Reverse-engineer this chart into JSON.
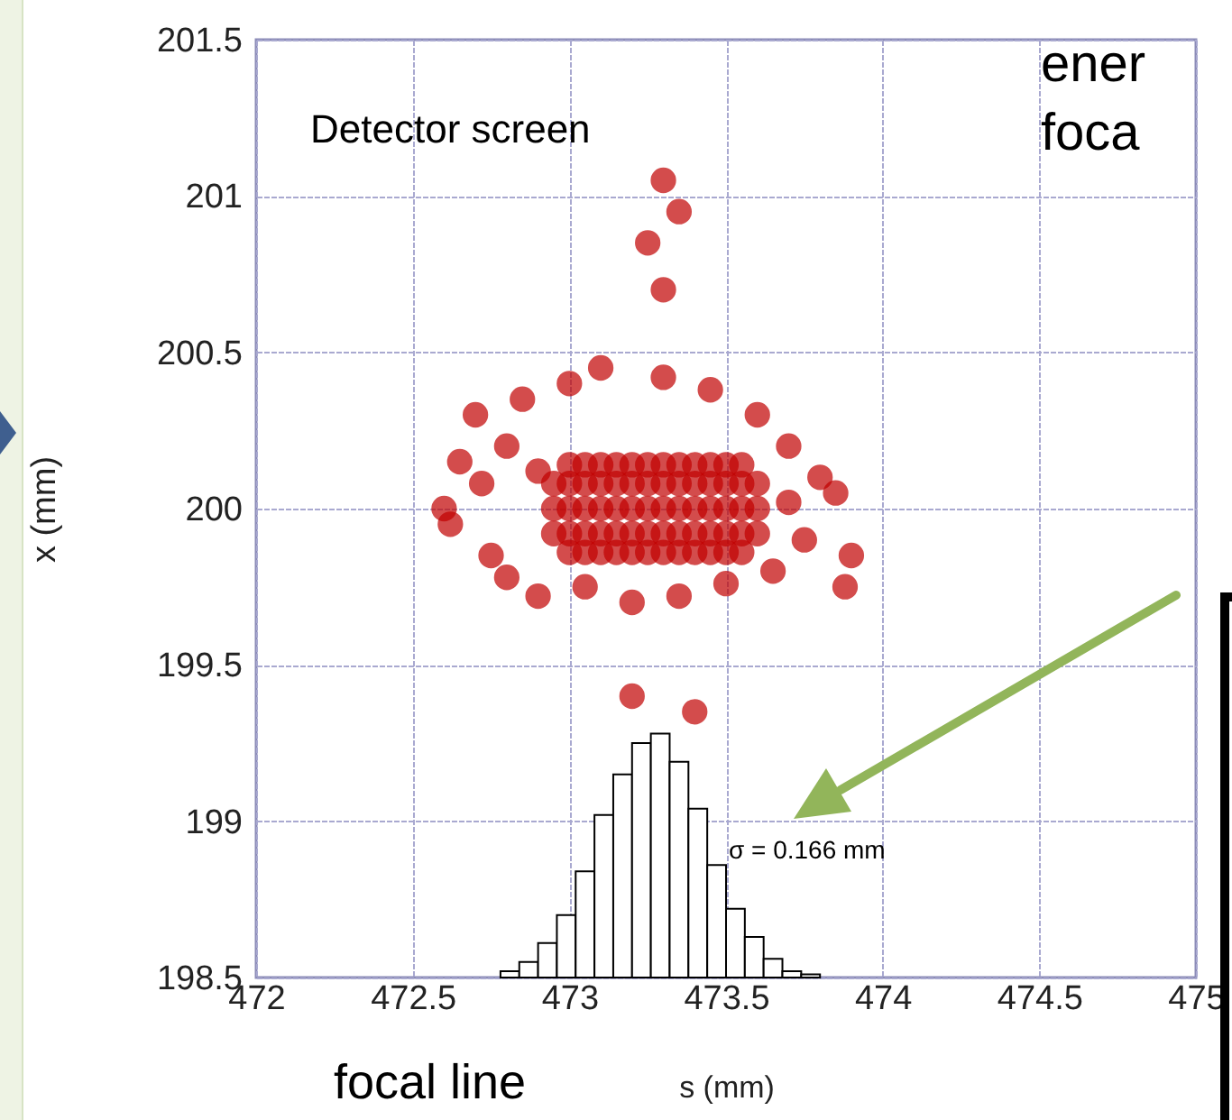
{
  "chart_data": {
    "type": "scatter",
    "xlabel": "s (mm)",
    "ylabel": "x (mm)",
    "xlim": [
      472,
      475
    ],
    "xticks": [
      472,
      472.5,
      473,
      473.5,
      474,
      474.5,
      475
    ],
    "ylim": [
      198.5,
      201.5
    ],
    "yticks": [
      198.5,
      199,
      199.5,
      200,
      200.5,
      201,
      201.5
    ],
    "grid": true,
    "marker": "circle",
    "annotations": [
      "Detector screen",
      "σ = 0.166 mm",
      "focal line",
      "ener",
      "foca"
    ],
    "series": [
      {
        "color": "#c00000",
        "x": [
          472.95,
          473.0,
          473.05,
          473.1,
          473.15,
          473.2,
          473.25,
          473.3,
          473.35,
          473.4,
          473.45,
          473.5,
          473.55,
          473.6,
          472.95,
          473.0,
          473.05,
          473.1,
          473.15,
          473.2,
          473.25,
          473.3,
          473.35,
          473.4,
          473.45,
          473.5,
          473.55,
          473.6,
          472.95,
          473.0,
          473.05,
          473.1,
          473.15,
          473.2,
          473.25,
          473.3,
          473.35,
          473.4,
          473.45,
          473.5,
          473.55,
          473.6,
          473.0,
          473.05,
          473.1,
          473.15,
          473.2,
          473.25,
          473.3,
          473.35,
          473.4,
          473.45,
          473.5,
          473.55,
          473.0,
          473.05,
          473.1,
          473.15,
          473.2,
          473.25,
          473.3,
          473.35,
          473.4,
          473.45,
          473.5,
          473.55,
          472.6,
          472.62,
          472.65,
          472.7,
          472.75,
          472.8,
          472.8,
          472.85,
          472.9,
          473.0,
          473.05,
          473.1,
          473.2,
          473.3,
          473.35,
          473.45,
          473.5,
          473.6,
          473.65,
          473.7,
          473.75,
          473.8,
          473.85,
          473.9,
          473.88,
          472.72,
          472.9,
          473.7,
          473.3,
          473.25,
          473.4,
          473.2,
          473.3,
          473.35
        ],
        "values": [
          199.92,
          199.92,
          199.92,
          199.92,
          199.92,
          199.92,
          199.92,
          199.92,
          199.92,
          199.92,
          199.92,
          199.92,
          199.92,
          199.92,
          200.0,
          200.0,
          200.0,
          200.0,
          200.0,
          200.0,
          200.0,
          200.0,
          200.0,
          200.0,
          200.0,
          200.0,
          200.0,
          200.0,
          200.08,
          200.08,
          200.08,
          200.08,
          200.08,
          200.08,
          200.08,
          200.08,
          200.08,
          200.08,
          200.08,
          200.08,
          200.08,
          200.08,
          199.86,
          199.86,
          199.86,
          199.86,
          199.86,
          199.86,
          199.86,
          199.86,
          199.86,
          199.86,
          199.86,
          199.86,
          200.14,
          200.14,
          200.14,
          200.14,
          200.14,
          200.14,
          200.14,
          200.14,
          200.14,
          200.14,
          200.14,
          200.14,
          200.0,
          199.95,
          200.15,
          200.3,
          199.85,
          200.2,
          199.78,
          200.35,
          199.72,
          200.4,
          199.75,
          200.45,
          199.7,
          200.42,
          199.72,
          200.38,
          199.76,
          200.3,
          199.8,
          200.2,
          199.9,
          200.1,
          200.05,
          199.85,
          199.75,
          200.08,
          200.12,
          200.02,
          200.7,
          200.85,
          199.35,
          199.4,
          201.05,
          200.95
        ]
      },
      {
        "type": "histogram",
        "color": "#ffffff",
        "bins": [
          472.78,
          472.84,
          472.9,
          472.96,
          473.02,
          473.08,
          473.14,
          473.2,
          473.26,
          473.32,
          473.38,
          473.44,
          473.5,
          473.56,
          473.62,
          473.68,
          473.74,
          473.8
        ],
        "values": [
          198.52,
          198.55,
          198.61,
          198.7,
          198.84,
          199.02,
          199.15,
          199.25,
          199.28,
          199.19,
          199.04,
          198.86,
          198.72,
          198.63,
          198.56,
          198.52,
          198.51
        ]
      }
    ]
  }
}
